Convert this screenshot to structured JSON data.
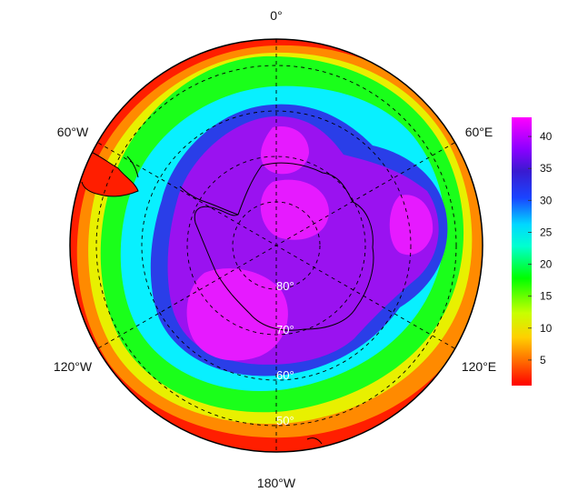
{
  "map": {
    "type": "south-polar-stereographic",
    "variable_shown": "colour field",
    "longitude_labels": [
      "0°",
      "60°E",
      "120°E",
      "180°W",
      "120°W",
      "60°W"
    ],
    "latitude_labels": [
      "80°",
      "70°",
      "60°",
      "50°"
    ],
    "latitude_circles": [
      80,
      70,
      60,
      50
    ],
    "meridians_deg": [
      0,
      60,
      120,
      180,
      240,
      300
    ],
    "grid_style": "dashed black",
    "coastline": "Antarctica and southern South America (black outline)"
  },
  "colorbar": {
    "min": 1,
    "max": 43,
    "ticks": [
      "5",
      "10",
      "15",
      "20",
      "25",
      "30",
      "35",
      "40"
    ],
    "tick_values": [
      5,
      10,
      15,
      20,
      25,
      30,
      35,
      40
    ],
    "palette": [
      "#ff0000",
      "#ff6a00",
      "#ffd000",
      "#c8ff00",
      "#00ff00",
      "#00ffd0",
      "#00d8ff",
      "#1a44ff",
      "#3a1ad0",
      "#8a00ff",
      "#e000ff",
      "#ff00ff"
    ]
  },
  "field_zones": [
    {
      "name": "polar-core",
      "value": 38,
      "color": "#9a12f0"
    },
    {
      "name": "core-magenta",
      "value": 42,
      "color": "#e61aff"
    },
    {
      "name": "inner-ring",
      "value": 32,
      "color": "#2a3ee8"
    },
    {
      "name": "cyan-band",
      "value": 25,
      "color": "#08f0ff"
    },
    {
      "name": "green-band",
      "value": 18,
      "color": "#1aff1a"
    },
    {
      "name": "yellow-band",
      "value": 11,
      "color": "#e8f000"
    },
    {
      "name": "orange-band",
      "value": 6,
      "color": "#ff8a00"
    },
    {
      "name": "outer-red",
      "value": 2,
      "color": "#ff1e00"
    }
  ]
}
